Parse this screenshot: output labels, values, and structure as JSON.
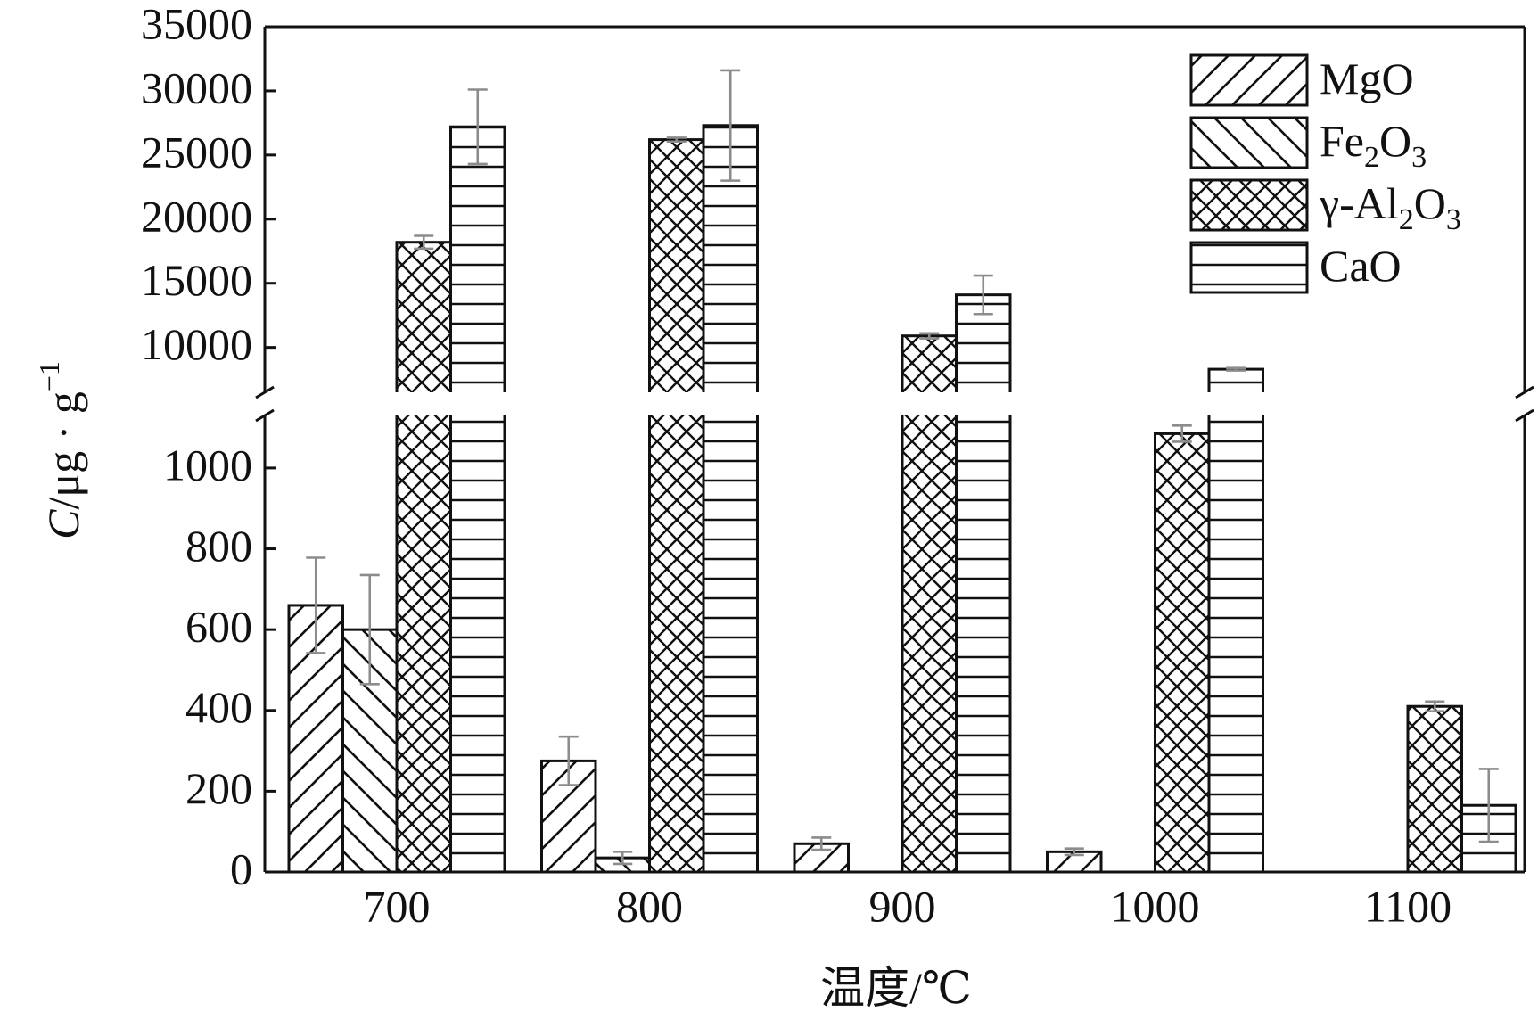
{
  "chart_data": {
    "type": "bar",
    "xlabel": "温度/℃",
    "ylabel_text": "C/μg · g",
    "ylabel_sup": "−1",
    "categories": [
      "700",
      "800",
      "900",
      "1000",
      "1100"
    ],
    "series": [
      {
        "name": "MgO",
        "legend_main": "MgO",
        "legend_sub": "",
        "legend_tail": "",
        "pattern": "diag-up",
        "values": [
          660,
          275,
          70,
          50,
          null
        ],
        "errors": [
          118,
          60,
          15,
          8,
          null
        ]
      },
      {
        "name": "Fe2O3",
        "legend_main": "Fe",
        "legend_sub": "2",
        "legend_tail": "O",
        "legend_sub2": "3",
        "pattern": "diag-down",
        "values": [
          600,
          35,
          null,
          null,
          null
        ],
        "errors": [
          135,
          15,
          null,
          null,
          null
        ]
      },
      {
        "name": "γ-Al2O3",
        "legend_main": "γ-Al",
        "legend_sub": "2",
        "legend_tail": "O",
        "legend_sub2": "3",
        "pattern": "crosshatch",
        "values": [
          18200,
          26200,
          10900,
          1085,
          410
        ],
        "errors": [
          500,
          150,
          200,
          20,
          12
        ]
      },
      {
        "name": "CaO",
        "legend_main": "CaO",
        "legend_sub": "",
        "legend_tail": "",
        "pattern": "horizontal",
        "values": [
          27200,
          27300,
          14100,
          8300,
          165
        ],
        "errors": [
          2900,
          4300,
          1500,
          100,
          90
        ]
      }
    ],
    "ylim_lower": [
      0,
      1130
    ],
    "ylim_upper": [
      6500,
      35000
    ],
    "yticks_lower": [
      0,
      200,
      400,
      600,
      800,
      1000
    ],
    "yticks_upper": [
      10000,
      15000,
      20000,
      25000,
      30000,
      35000
    ],
    "axis_break": true,
    "legend_position": "top-right",
    "grid": false,
    "colors": {
      "bar_stroke": "#111111",
      "error_bar": "#8c8c8c",
      "background": "#ffffff"
    }
  }
}
